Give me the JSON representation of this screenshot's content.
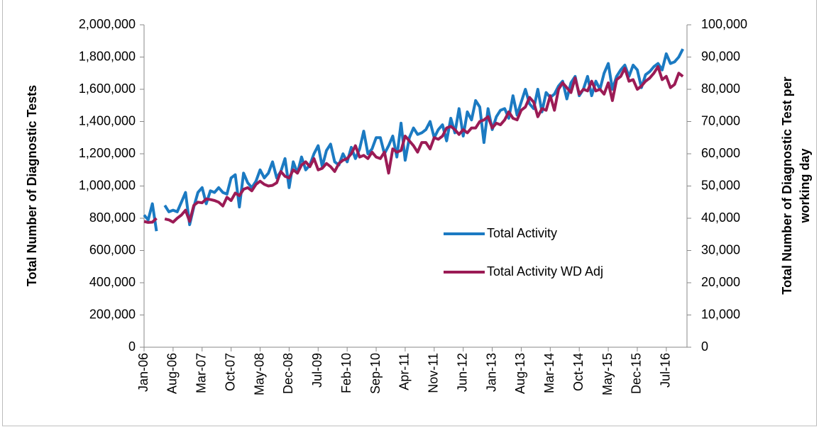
{
  "chart_data": {
    "type": "line",
    "y_label": "Total Number of Diagnostic Tests",
    "y2_label": [
      "Total Number of Diagnostic Test per",
      "working day"
    ],
    "categories": [
      "Jan-06",
      null,
      null,
      null,
      null,
      null,
      null,
      "Aug-06",
      null,
      null,
      null,
      null,
      null,
      null,
      "Mar-07",
      null,
      null,
      null,
      null,
      null,
      null,
      "Oct-07",
      null,
      null,
      null,
      null,
      null,
      null,
      "May-08",
      null,
      null,
      null,
      null,
      null,
      null,
      "Dec-08",
      null,
      null,
      null,
      null,
      null,
      null,
      "Jul-09",
      null,
      null,
      null,
      null,
      null,
      null,
      "Feb-10",
      null,
      null,
      null,
      null,
      null,
      null,
      "Sep-10",
      null,
      null,
      null,
      null,
      null,
      null,
      "Apr-11",
      null,
      null,
      null,
      null,
      null,
      null,
      "Nov-11",
      null,
      null,
      null,
      null,
      null,
      null,
      "Jun-12",
      null,
      null,
      null,
      null,
      null,
      null,
      "Jan-13",
      null,
      null,
      null,
      null,
      null,
      null,
      "Aug-13",
      null,
      null,
      null,
      null,
      null,
      null,
      "Mar-14",
      null,
      null,
      null,
      null,
      null,
      null,
      "Oct-14",
      null,
      null,
      null,
      null,
      null,
      null,
      "May-15",
      null,
      null,
      null,
      null,
      null,
      null,
      "Dec-15",
      null,
      null,
      null,
      null,
      null,
      null,
      "Jul-16",
      null,
      null,
      null,
      null
    ],
    "series": [
      {
        "name": "Total Activity",
        "color": "#1b7ac2",
        "axis": "y",
        "values": [
          820000,
          790000,
          890000,
          720000,
          null,
          880000,
          840000,
          850000,
          840000,
          900000,
          960000,
          760000,
          870000,
          960000,
          990000,
          890000,
          970000,
          960000,
          990000,
          960000,
          950000,
          1050000,
          1070000,
          870000,
          1080000,
          1020000,
          990000,
          1030000,
          1100000,
          1050000,
          1080000,
          1150000,
          1050000,
          1090000,
          1170000,
          990000,
          1150000,
          1080000,
          1180000,
          1100000,
          1130000,
          1200000,
          1250000,
          1120000,
          1220000,
          1260000,
          1150000,
          1130000,
          1200000,
          1150000,
          1240000,
          1170000,
          1230000,
          1340000,
          1200000,
          1230000,
          1300000,
          1300000,
          1200000,
          1250000,
          1310000,
          1180000,
          1390000,
          1160000,
          1300000,
          1360000,
          1320000,
          1330000,
          1350000,
          1400000,
          1300000,
          1350000,
          1380000,
          1280000,
          1420000,
          1330000,
          1480000,
          1310000,
          1460000,
          1410000,
          1530000,
          1490000,
          1270000,
          1480000,
          1350000,
          1430000,
          1470000,
          1480000,
          1420000,
          1560000,
          1440000,
          1520000,
          1600000,
          1510000,
          1480000,
          1600000,
          1460000,
          1580000,
          1550000,
          1570000,
          1620000,
          1650000,
          1540000,
          1640000,
          1680000,
          1560000,
          1600000,
          1680000,
          1560000,
          1650000,
          1600000,
          1700000,
          1760000,
          1600000,
          1680000,
          1720000,
          1750000,
          1680000,
          1750000,
          1720000,
          1610000,
          1690000,
          1710000,
          1740000,
          1760000,
          1720000,
          1820000,
          1760000,
          1770000,
          1800000,
          1850000
        ]
      },
      {
        "name": "Total Activity WD Adj",
        "color": "#9b1b55",
        "axis": "y2",
        "values": [
          39000,
          38700,
          38800,
          40000,
          null,
          39800,
          39500,
          38800,
          40000,
          41000,
          42500,
          39000,
          44000,
          45000,
          44800,
          46000,
          45800,
          45500,
          45000,
          43800,
          46500,
          45500,
          47800,
          47000,
          49000,
          49500,
          48500,
          50500,
          51500,
          50500,
          50000,
          50200,
          51000,
          54500,
          53000,
          52500,
          55000,
          54000,
          56500,
          57500,
          56000,
          58500,
          55000,
          55500,
          57000,
          56000,
          54500,
          57000,
          58000,
          58500,
          60000,
          62500,
          59000,
          59500,
          58500,
          60500,
          59000,
          58500,
          60500,
          54000,
          61500,
          60500,
          61000,
          65500,
          64000,
          62500,
          60500,
          63500,
          63500,
          61500,
          65000,
          64500,
          65500,
          68000,
          68500,
          67500,
          66000,
          67500,
          66500,
          68000,
          68000,
          70000,
          70500,
          71500,
          68000,
          69500,
          69000,
          70500,
          73000,
          71000,
          70500,
          73500,
          74500,
          77500,
          76000,
          71500,
          74000,
          73500,
          78000,
          73500,
          80000,
          82000,
          80500,
          79000,
          83500,
          78500,
          80000,
          79500,
          82500,
          79500,
          80000,
          78500,
          82000,
          76500,
          83000,
          84000,
          86500,
          82500,
          83000,
          80000,
          81000,
          82500,
          83500,
          85000,
          87000,
          83000,
          84000,
          80500,
          81500,
          85000,
          84000
        ]
      }
    ],
    "ylim": [
      0,
      2000000
    ],
    "yticks": [
      0,
      {
        "value": 200000,
        "label": "200,000"
      },
      {
        "value": 400000,
        "label": "400,000"
      },
      {
        "value": 600000,
        "label": "600,000"
      },
      {
        "value": 800000,
        "label": "800,000"
      },
      {
        "value": 1000000,
        "label": "1,000,000"
      },
      {
        "value": 1200000,
        "label": "1,200,000"
      },
      {
        "value": 1400000,
        "label": "1,400,000"
      },
      {
        "value": 1600000,
        "label": "1,600,000"
      },
      {
        "value": 1800000,
        "label": "1,800,000"
      },
      {
        "value": 2000000,
        "label": "2,000,000"
      }
    ],
    "y2lim": [
      0,
      100000
    ],
    "y2ticks": [
      0,
      {
        "value": 10000,
        "label": "10,000"
      },
      {
        "value": 20000,
        "label": "20,000"
      },
      {
        "value": 30000,
        "label": "30,000"
      },
      {
        "value": 40000,
        "label": "40,000"
      },
      {
        "value": 50000,
        "label": "50,000"
      },
      {
        "value": 60000,
        "label": "60,000"
      },
      {
        "value": 70000,
        "label": "70,000"
      },
      {
        "value": 80000,
        "label": "80,000"
      },
      {
        "value": 90000,
        "label": "90,000"
      },
      {
        "value": {
          "value": 100000,
          "label": "100,000"
        }
      }
    ],
    "grid": false,
    "legend": "center-right"
  }
}
